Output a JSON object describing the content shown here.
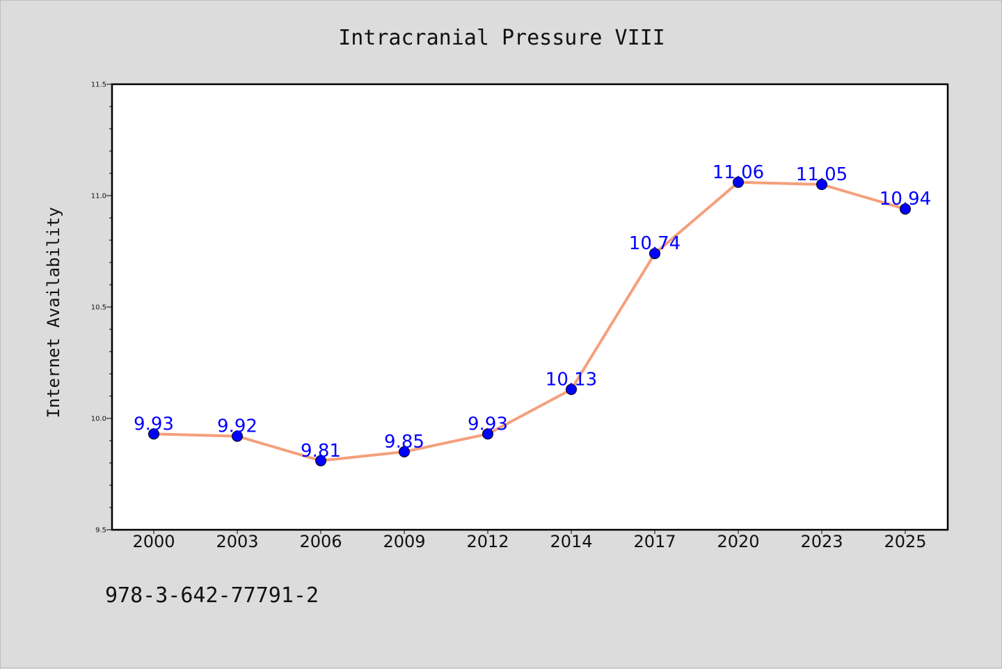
{
  "chart_data": {
    "type": "line",
    "title": "Intracranial Pressure VIII",
    "xlabel": "",
    "ylabel": "Internet Availability",
    "categories": [
      "2000",
      "2003",
      "2006",
      "2009",
      "2012",
      "2014",
      "2017",
      "2020",
      "2023",
      "2025"
    ],
    "series": [
      {
        "values": [
          9.93,
          9.92,
          9.81,
          9.85,
          9.93,
          10.13,
          10.74,
          11.06,
          11.05,
          10.94
        ],
        "line_color": "#f4a07c",
        "marker_color": "#0000ff"
      }
    ],
    "data_labels": [
      "9.93",
      "9.92",
      "9.81",
      "9.85",
      "9.93",
      "10.13",
      "10.74",
      "11.06",
      "11.05",
      "10.94"
    ],
    "ylim": [
      9.5,
      11.5
    ],
    "yticks": [
      "9.5",
      "10.0",
      "10.5",
      "11.0",
      "11.5"
    ],
    "grid": false,
    "legend": "none"
  },
  "footer": {
    "isbn": "978-3-642-77791-2"
  },
  "colors": {
    "background": "#dcdcdc",
    "plot_background": "#ffffff",
    "line": "#f4a07c",
    "marker": "#0000ff",
    "data_label": "#0000ff"
  }
}
